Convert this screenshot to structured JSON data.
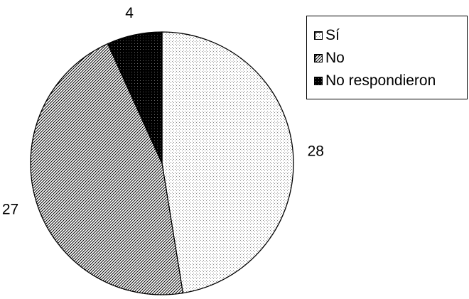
{
  "chart_data": {
    "type": "pie",
    "categories": [
      "Sí",
      "No",
      "No respondieron"
    ],
    "values": [
      28,
      27,
      4
    ],
    "data_labels": [
      "28",
      "27",
      "4"
    ],
    "legend_position": "top-right",
    "slice_order": "clockwise from top",
    "fills": [
      "dotted-light",
      "diagonal-hatch",
      "black-dotted"
    ],
    "colors": {
      "outline": "#000000",
      "background": "#ffffff"
    }
  }
}
